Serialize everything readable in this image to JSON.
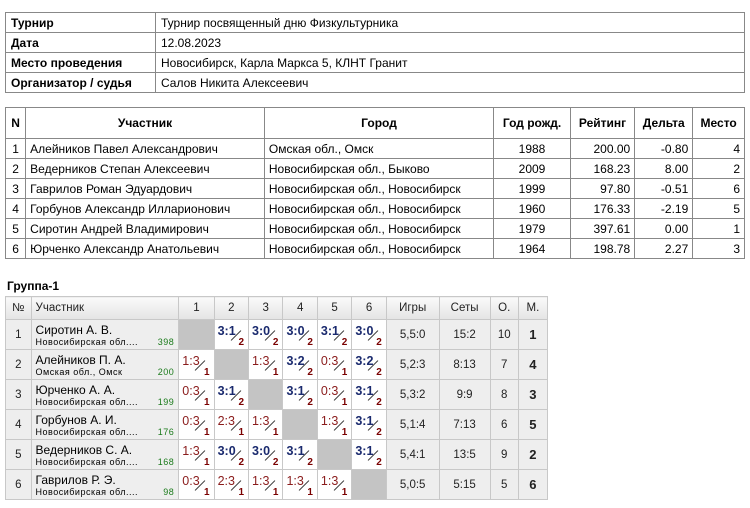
{
  "info": [
    {
      "label": "Турнир",
      "value": "Турнир посвященный дню Физкультурника"
    },
    {
      "label": "Дата",
      "value": "12.08.2023"
    },
    {
      "label": "Место проведения",
      "value": "Новосибирск, Карла Маркса 5, КЛНТ Гранит"
    },
    {
      "label": "Организатор / судья",
      "value": "Салов Никита Алексеевич"
    }
  ],
  "participants": {
    "headers": [
      "N",
      "Участник",
      "Город",
      "Год рожд.",
      "Рейтинг",
      "Дельта",
      "Место"
    ],
    "rows": [
      [
        "1",
        "Алейников Павел Александрович",
        "Омская обл., Омск",
        "1988",
        "200.00",
        "-0.80",
        "4"
      ],
      [
        "2",
        "Ведерников Степан Алексеевич",
        "Новосибирская обл., Быково",
        "2009",
        "168.23",
        "8.00",
        "2"
      ],
      [
        "3",
        "Гаврилов Роман Эдуардович",
        "Новосибирская обл., Новосибирск",
        "1999",
        "97.80",
        "-0.51",
        "6"
      ],
      [
        "4",
        "Горбунов Александр Илларионович",
        "Новосибирская обл., Новосибирск",
        "1960",
        "176.33",
        "-2.19",
        "5"
      ],
      [
        "5",
        "Сиротин Андрей Владимирович",
        "Новосибирская обл., Новосибирск",
        "1979",
        "397.61",
        "0.00",
        "1"
      ],
      [
        "6",
        "Юрченко Александр Анатольевич",
        "Новосибирская обл., Новосибирск",
        "1964",
        "198.78",
        "2.27",
        "3"
      ]
    ]
  },
  "group": {
    "title": "Группа-1",
    "headers": [
      "№",
      "Участник",
      "1",
      "2",
      "3",
      "4",
      "5",
      "6",
      "Игры",
      "Сеты",
      "О.",
      "М."
    ],
    "rows": [
      {
        "n": "1",
        "name": "Сиротин А. В.",
        "city": "Новосибирская обл....",
        "rating": "398",
        "results": [
          null,
          [
            "3:1",
            "2"
          ],
          [
            "3:0",
            "2"
          ],
          [
            "3:0",
            "2"
          ],
          [
            "3:1",
            "2"
          ],
          [
            "3:0",
            "2"
          ]
        ],
        "games": "5,5:0",
        "sets": "15:2",
        "points": "10",
        "place": "1"
      },
      {
        "n": "2",
        "name": "Алейников П. А.",
        "city": "Омская обл., Омск",
        "rating": "200",
        "results": [
          [
            "1:3",
            "1"
          ],
          null,
          [
            "1:3",
            "1"
          ],
          [
            "3:2",
            "2"
          ],
          [
            "0:3",
            "1"
          ],
          [
            "3:2",
            "2"
          ]
        ],
        "games": "5,2:3",
        "sets": "8:13",
        "points": "7",
        "place": "4"
      },
      {
        "n": "3",
        "name": "Юрченко А. А.",
        "city": "Новосибирская обл....",
        "rating": "199",
        "results": [
          [
            "0:3",
            "1"
          ],
          [
            "3:1",
            "2"
          ],
          null,
          [
            "3:1",
            "2"
          ],
          [
            "0:3",
            "1"
          ],
          [
            "3:1",
            "2"
          ]
        ],
        "games": "5,3:2",
        "sets": "9:9",
        "points": "8",
        "place": "3"
      },
      {
        "n": "4",
        "name": "Горбунов А. И.",
        "city": "Новосибирская обл....",
        "rating": "176",
        "results": [
          [
            "0:3",
            "1"
          ],
          [
            "2:3",
            "1"
          ],
          [
            "1:3",
            "1"
          ],
          null,
          [
            "1:3",
            "1"
          ],
          [
            "3:1",
            "2"
          ]
        ],
        "games": "5,1:4",
        "sets": "7:13",
        "points": "6",
        "place": "5"
      },
      {
        "n": "5",
        "name": "Ведерников С. А.",
        "city": "Новосибирская обл....",
        "rating": "168",
        "results": [
          [
            "1:3",
            "1"
          ],
          [
            "3:0",
            "2"
          ],
          [
            "3:0",
            "2"
          ],
          [
            "3:1",
            "2"
          ],
          null,
          [
            "3:1",
            "2"
          ]
        ],
        "games": "5,4:1",
        "sets": "13:5",
        "points": "9",
        "place": "2"
      },
      {
        "n": "6",
        "name": "Гаврилов Р. Э.",
        "city": "Новосибирская обл....",
        "rating": "98",
        "results": [
          [
            "0:3",
            "1"
          ],
          [
            "2:3",
            "1"
          ],
          [
            "1:3",
            "1"
          ],
          [
            "1:3",
            "1"
          ],
          [
            "1:3",
            "1"
          ],
          null
        ],
        "games": "5,0:5",
        "sets": "5:15",
        "points": "5",
        "place": "6"
      }
    ]
  }
}
